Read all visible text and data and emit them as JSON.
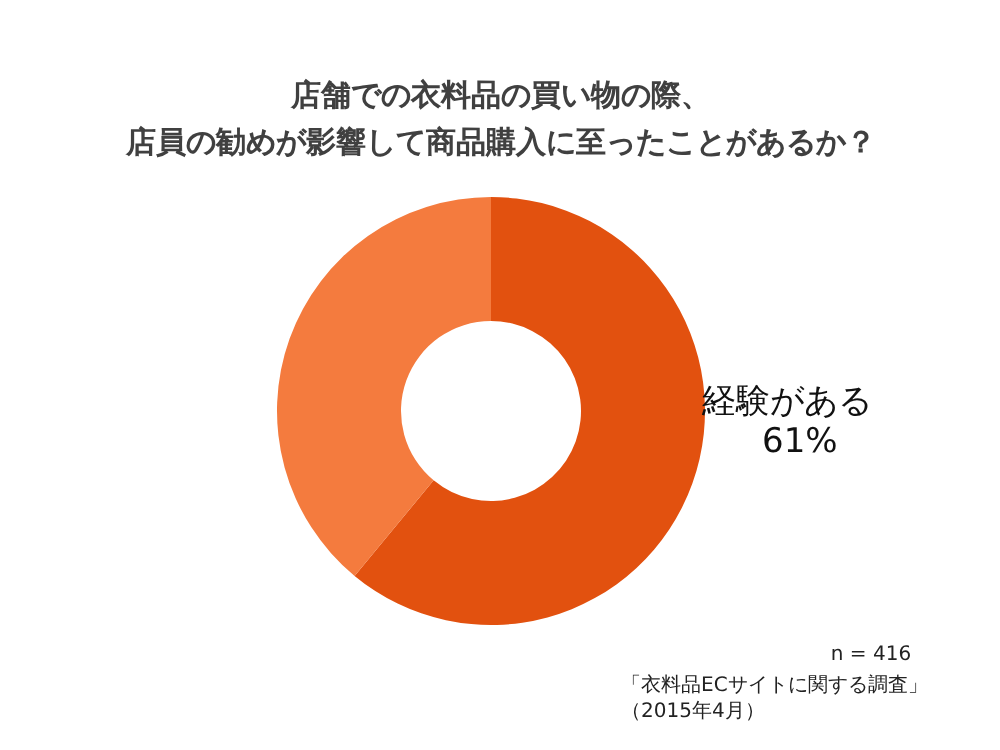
{
  "chart_data": {
    "type": "donut",
    "title": "店舗での衣料品の買い物の際、店員の勧めが影響して商品購入に至ったことがあるか？",
    "categories": [
      "経験がある",
      null
    ],
    "values": [
      61,
      39
    ],
    "colors": [
      "#e2510f",
      "#f47b3e"
    ],
    "value_labels": [
      "61%",
      null
    ],
    "annotations": [
      "n = 416",
      "「衣料品ECサイトに関する調査」（2015年4月）"
    ]
  }
}
